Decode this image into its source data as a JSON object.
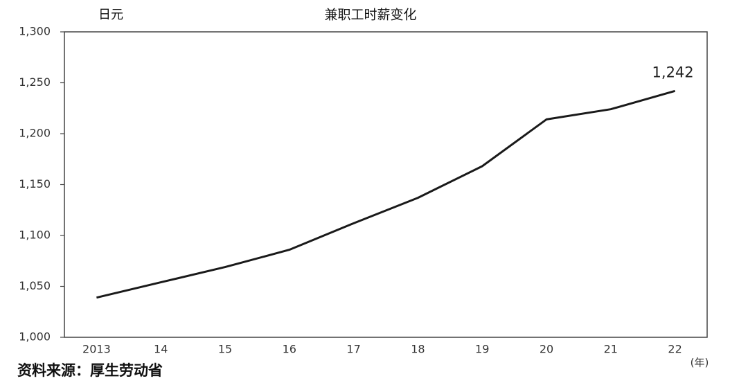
{
  "chart_data": {
    "type": "line",
    "title": "兼职工时薪变化",
    "y_unit": "日元",
    "x_unit": "(年)",
    "source": "资料来源：厚生劳动省",
    "categories": [
      "2013",
      "14",
      "15",
      "16",
      "17",
      "18",
      "19",
      "20",
      "21",
      "22"
    ],
    "values": [
      1039,
      1054,
      1069,
      1086,
      1112,
      1137,
      1168,
      1214,
      1224,
      1242
    ],
    "value_labels": [
      null,
      null,
      null,
      null,
      null,
      null,
      null,
      null,
      null,
      "1,242"
    ],
    "color": "#1a1a1a",
    "ylim": [
      1000,
      1300
    ],
    "yticks": [
      {
        "value": 1000,
        "label": "1,000"
      },
      {
        "value": 1050,
        "label": "1,050"
      },
      {
        "value": 1100,
        "label": "1,100"
      },
      {
        "value": 1150,
        "label": "1,150"
      },
      {
        "value": 1200,
        "label": "1,200"
      },
      {
        "value": 1250,
        "label": "1,250"
      },
      {
        "value": 1300,
        "label": "1,300"
      }
    ],
    "grid": false
  }
}
